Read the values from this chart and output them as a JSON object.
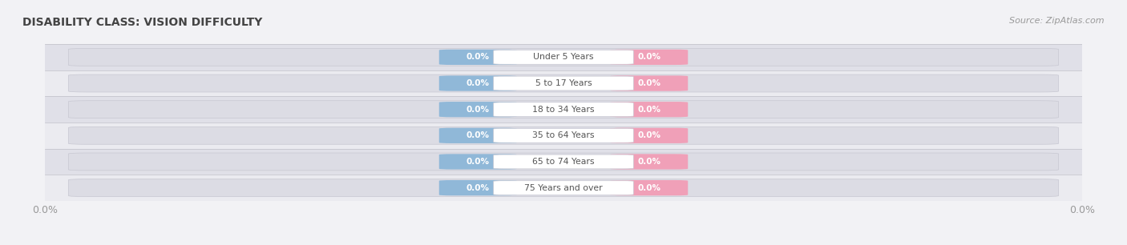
{
  "title": "DISABILITY CLASS: VISION DIFFICULTY",
  "source_text": "Source: ZipAtlas.com",
  "categories": [
    "Under 5 Years",
    "5 to 17 Years",
    "18 to 34 Years",
    "35 to 64 Years",
    "65 to 74 Years",
    "75 Years and over"
  ],
  "male_values": [
    0.0,
    0.0,
    0.0,
    0.0,
    0.0,
    0.0
  ],
  "female_values": [
    0.0,
    0.0,
    0.0,
    0.0,
    0.0,
    0.0
  ],
  "male_color": "#90b8d8",
  "female_color": "#f0a0b8",
  "track_color": "#dcdce4",
  "track_border_color": "#c8c8d2",
  "row_bg_light": "#ebebf0",
  "row_bg_dark": "#e0e0e8",
  "fig_bg": "#f2f2f5",
  "title_color": "#444444",
  "value_text_color": "#ffffff",
  "center_label_color": "#555555",
  "axis_label_color": "#999999",
  "legend_label_color": "#555555",
  "figsize": [
    14.06,
    3.06
  ],
  "dpi": 100
}
